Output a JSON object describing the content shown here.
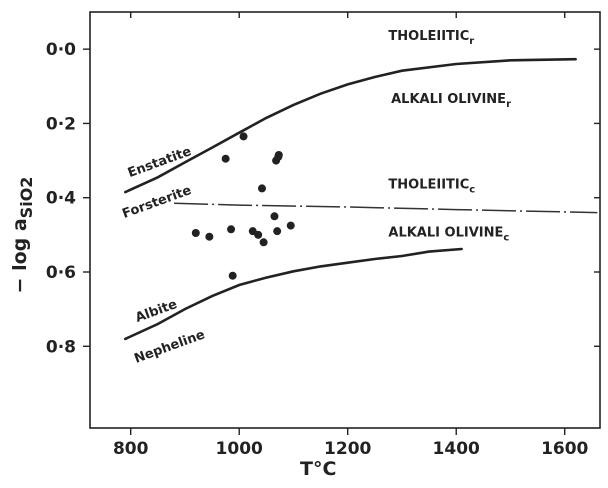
{
  "chart_data": {
    "type": "line",
    "title": "",
    "xlabel": "T°C",
    "ylabel": "− log a_SiO2",
    "xlim": [
      725,
      1665
    ],
    "ylim": [
      -0.1,
      1.02
    ],
    "y_inverted": true,
    "x_ticks": [
      800,
      1000,
      1200,
      1400,
      1600
    ],
    "x_tick_labels": [
      "800",
      "1000",
      "1200",
      "1400",
      "1600"
    ],
    "y_ticks": [
      0.0,
      0.2,
      0.4,
      0.6,
      0.8
    ],
    "y_tick_labels": [
      "0·0",
      "0·2",
      "0·4",
      "0·6",
      "0·8"
    ],
    "series": [
      {
        "name": "",
        "style": "solid",
        "x": [
          790,
          850,
          900,
          950,
          1000,
          1050,
          1100,
          1150,
          1200,
          1250,
          1300,
          1400,
          1500,
          1620
        ],
        "y": [
          0.385,
          0.345,
          0.305,
          0.265,
          0.225,
          0.185,
          0.15,
          0.12,
          0.095,
          0.075,
          0.058,
          0.04,
          0.03,
          0.027
        ]
      },
      {
        "name": "",
        "style": "dash-dot",
        "x": [
          880,
          1000,
          1200,
          1400,
          1660
        ],
        "y": [
          0.415,
          0.42,
          0.425,
          0.432,
          0.44
        ]
      },
      {
        "name": "",
        "style": "solid",
        "x": [
          790,
          850,
          900,
          950,
          1000,
          1050,
          1100,
          1150,
          1200,
          1250,
          1300,
          1350,
          1410
        ],
        "y": [
          0.78,
          0.74,
          0.7,
          0.665,
          0.635,
          0.615,
          0.598,
          0.585,
          0.575,
          0.565,
          0.557,
          0.545,
          0.538
        ]
      },
      {
        "name": "",
        "style": "scatter",
        "x": [
          920,
          945,
          975,
          985,
          988,
          1008,
          1025,
          1035,
          1042,
          1045,
          1065,
          1068,
          1070,
          1072,
          1073,
          1095
        ],
        "y": [
          0.495,
          0.505,
          0.295,
          0.485,
          0.61,
          0.235,
          0.49,
          0.5,
          0.375,
          0.52,
          0.45,
          0.3,
          0.49,
          0.29,
          0.285,
          0.475
        ]
      }
    ],
    "annotations": [
      {
        "id": "tholeiitic_r",
        "text": "THOLEIITIC",
        "sub": "r",
        "x": 1275,
        "y": -0.025
      },
      {
        "id": "alkali_olivine_r",
        "text": "ALKALI OLIVINE",
        "sub": "r",
        "x": 1280,
        "y": 0.145
      },
      {
        "id": "tholeiitic_c",
        "text": "THOLEIITIC",
        "sub": "c",
        "x": 1275,
        "y": 0.375
      },
      {
        "id": "alkali_olivine_c",
        "text": "ALKALI OLIVINE",
        "sub": "c",
        "x": 1275,
        "y": 0.505
      },
      {
        "id": "enstatite",
        "text": "Enstatite",
        "x": 798,
        "y": 0.345,
        "rotate": -20
      },
      {
        "id": "forsterite",
        "text": "Forsterite",
        "x": 788,
        "y": 0.455,
        "rotate": -20
      },
      {
        "id": "albite",
        "text": "Albite",
        "x": 812,
        "y": 0.735,
        "rotate": -20
      },
      {
        "id": "nepheline",
        "text": "Nepheline",
        "x": 810,
        "y": 0.845,
        "rotate": -20
      }
    ],
    "grid": false,
    "legend": "none"
  }
}
